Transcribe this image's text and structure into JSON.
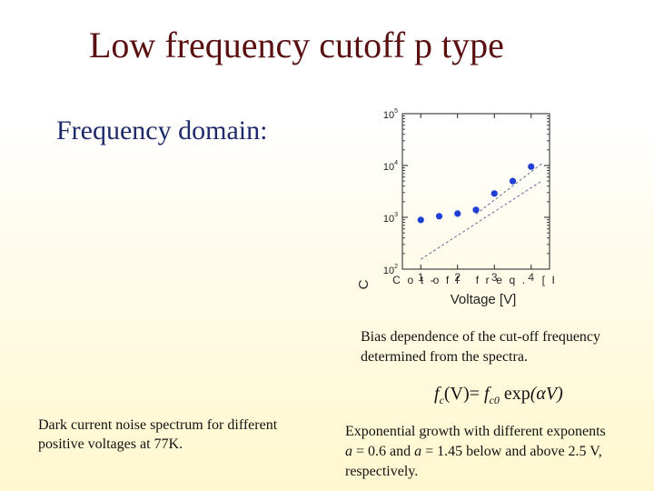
{
  "slide": {
    "title": "Low frequency cutoff p type",
    "subtitle": "Frequency domain:",
    "caption_bias": "Bias dependence of the cut-off frequency determined from the spectra.",
    "caption_dark": "Dark current noise spectrum for different positive voltages at 77K.",
    "caption_exp_intro": "Exponential growth  with different exponents",
    "caption_exp_a1_sym": "a",
    "caption_exp_a1_val": " = 0.6 and ",
    "caption_exp_a2_sym": "a",
    "caption_exp_a2_val": " = 1.45 below and above 2.5 V, respectively.",
    "formula": {
      "f": "f",
      "c": "c",
      "lhs_arg": "(V)",
      "eq": "= ",
      "fc0": "f",
      "c0": "c0",
      "exp": " exp",
      "arg": "(αV)"
    }
  },
  "chart_data": {
    "type": "scatter",
    "xlabel": "Voltage [V]",
    "ylabel": "C",
    "ylabel_garbled": "Cot-off freq. [Hz]",
    "xlim": [
      0.5,
      4.5
    ],
    "ylim_log10": [
      2,
      5
    ],
    "yscale": "log",
    "x_ticks": [
      "1",
      "2",
      "3",
      "4"
    ],
    "y_ticks": [
      {
        "base": "10",
        "exp": "2"
      },
      {
        "base": "10",
        "exp": "3"
      },
      {
        "base": "10",
        "exp": "4"
      },
      {
        "base": "10",
        "exp": "5"
      }
    ],
    "points": [
      {
        "x": 1.0,
        "y": 890
      },
      {
        "x": 1.5,
        "y": 1050
      },
      {
        "x": 2.0,
        "y": 1180
      },
      {
        "x": 2.5,
        "y": 1390
      },
      {
        "x": 3.0,
        "y": 2880
      },
      {
        "x": 3.5,
        "y": 5000
      },
      {
        "x": 4.0,
        "y": 9500
      }
    ],
    "fit_lines": [
      {
        "x": [
          1.0,
          4.3
        ],
        "y": [
          155,
          5100
        ]
      },
      {
        "x": [
          2.5,
          4.3
        ],
        "y": [
          1150,
          11000
        ]
      }
    ],
    "point_color": "#1f3fd6",
    "fit_color": "#6a6a9a",
    "grid": false
  }
}
